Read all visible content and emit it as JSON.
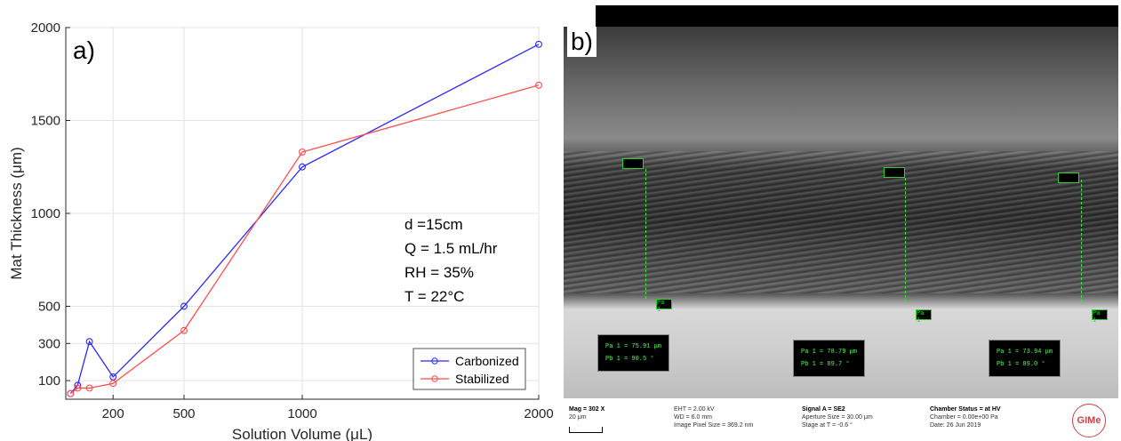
{
  "chart_data": {
    "type": "line",
    "panel_label": "a)",
    "xlabel": "Solution Volume (μL)",
    "ylabel": "Mat Thickness (μm)",
    "xlim": [
      0,
      2000
    ],
    "ylim": [
      0,
      2000
    ],
    "xticks": [
      200,
      500,
      1000,
      2000
    ],
    "yticks": [
      100,
      300,
      500,
      1000,
      1500,
      2000
    ],
    "grid": true,
    "legend_position": "bottom-right",
    "series": [
      {
        "name": "Carbonized",
        "color": "#2a2aff",
        "x": [
          20,
          50,
          100,
          200,
          500,
          1000,
          2000
        ],
        "y": [
          30,
          75,
          310,
          120,
          500,
          1250,
          1910
        ]
      },
      {
        "name": "Stabilized",
        "color": "#ff4d4d",
        "x": [
          20,
          50,
          100,
          200,
          500,
          1000,
          2000
        ],
        "y": [
          30,
          60,
          60,
          85,
          370,
          1330,
          1690
        ]
      }
    ],
    "annotations": [
      "d =15cm",
      "Q = 1.5 mL/hr",
      "RH =  35%",
      "T = 22°C"
    ]
  },
  "sem": {
    "panel_label": "b)",
    "markers": [
      "Pa 1",
      "Pa 1",
      "Pa 1"
    ],
    "measurements": [
      {
        "line1": "Pa 1 = 75.91 μm",
        "line2": "Pb 1 = 90.5 °"
      },
      {
        "line1": "Pa 1 = 78.79 μm",
        "line2": "Pb 1 = 89.7 °"
      },
      {
        "line1": "Pa 1 = 73.94 μm",
        "line2": "Pb 1 = 89.0 °"
      }
    ],
    "footer": {
      "mag": "Mag =    302 X",
      "scale": "20 μm",
      "eht": "EHT =  2.00 kV",
      "wd": "WD =   6.0 mm",
      "pixel": "Image Pixel Size = 369.2 nm",
      "signal": "Signal A = SE2",
      "aperture": "Aperture Size = 30.00 μm",
      "stage": "Stage at T =  -0.6 °",
      "chamber": "Chamber Status = at HV",
      "chamber_p": "Chamber = 0.00e+00 Pa",
      "date": "Date: 26 Jun 2019",
      "logo": "GIMe"
    }
  }
}
